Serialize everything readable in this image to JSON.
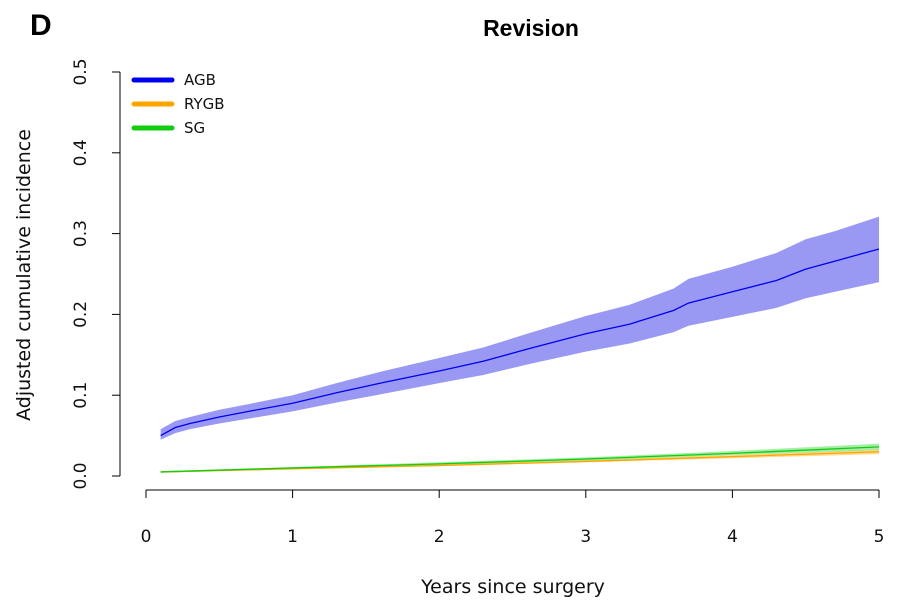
{
  "panel_letter": "D",
  "chart_data": {
    "type": "line",
    "title": "Revision",
    "xlabel": "Years since surgery",
    "ylabel": "Adjusted cumulative incidence",
    "xlim": [
      0,
      5
    ],
    "ylim": [
      0,
      0.5
    ],
    "x_ticks": [
      0,
      1,
      2,
      3,
      4,
      5
    ],
    "y_ticks": [
      "0.0",
      "0.1",
      "0.2",
      "0.3",
      "0.4",
      "0.5"
    ],
    "legend_position": "top-left",
    "grid": false,
    "series": [
      {
        "name": "AGB",
        "color": "#0000ee",
        "band_color": "#7777f0",
        "x": [
          0.1,
          0.2,
          0.3,
          0.5,
          0.7,
          1.0,
          1.3,
          1.6,
          2.0,
          2.3,
          2.6,
          3.0,
          3.3,
          3.6,
          3.7,
          4.0,
          4.3,
          4.5,
          4.7,
          5.0
        ],
        "y": [
          0.05,
          0.06,
          0.065,
          0.073,
          0.08,
          0.09,
          0.103,
          0.115,
          0.13,
          0.142,
          0.157,
          0.176,
          0.188,
          0.205,
          0.214,
          0.228,
          0.242,
          0.256,
          0.266,
          0.281
        ],
        "lower": [
          0.045,
          0.053,
          0.058,
          0.065,
          0.071,
          0.08,
          0.091,
          0.101,
          0.115,
          0.125,
          0.138,
          0.154,
          0.164,
          0.178,
          0.186,
          0.197,
          0.208,
          0.22,
          0.228,
          0.24
        ],
        "upper": [
          0.058,
          0.068,
          0.073,
          0.082,
          0.089,
          0.1,
          0.115,
          0.129,
          0.146,
          0.159,
          0.176,
          0.198,
          0.212,
          0.232,
          0.244,
          0.259,
          0.276,
          0.293,
          0.303,
          0.321
        ]
      },
      {
        "name": "RYGB",
        "color": "#ffa500",
        "band_color": "#ffcc66",
        "x": [
          0.1,
          1.0,
          2.0,
          3.0,
          4.0,
          5.0
        ],
        "y": [
          0.005,
          0.009,
          0.013,
          0.018,
          0.024,
          0.03
        ],
        "lower": [
          0.004,
          0.008,
          0.012,
          0.017,
          0.022,
          0.027
        ],
        "upper": [
          0.006,
          0.01,
          0.015,
          0.02,
          0.026,
          0.033
        ]
      },
      {
        "name": "SG",
        "color": "#11cc11",
        "band_color": "#88e888",
        "x": [
          0.1,
          1.0,
          2.0,
          3.0,
          4.0,
          5.0
        ],
        "y": [
          0.005,
          0.01,
          0.015,
          0.021,
          0.028,
          0.036
        ],
        "lower": [
          0.004,
          0.009,
          0.014,
          0.019,
          0.026,
          0.032
        ],
        "upper": [
          0.006,
          0.011,
          0.017,
          0.023,
          0.031,
          0.04
        ]
      }
    ]
  }
}
